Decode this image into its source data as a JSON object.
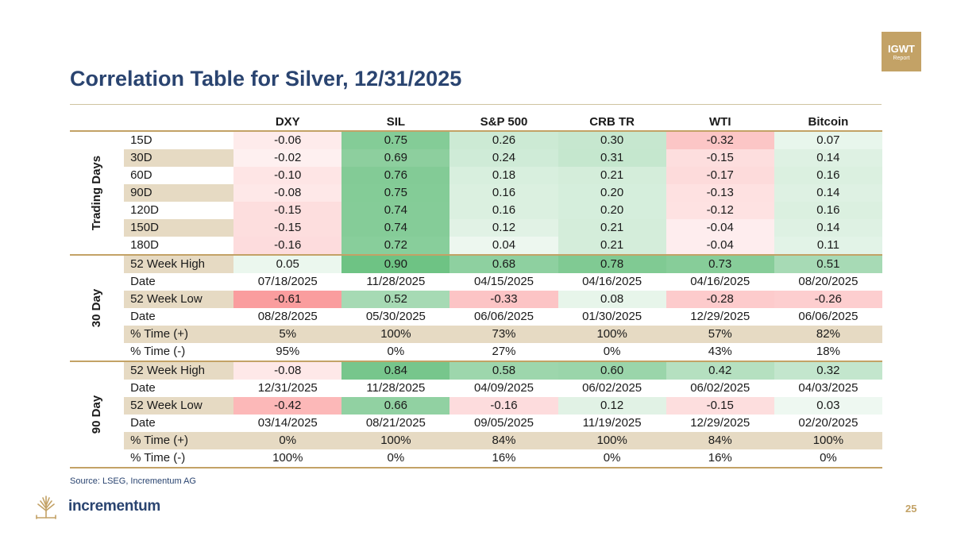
{
  "badge": {
    "line1": "IGWT",
    "line2": "Report"
  },
  "title": "Correlation Table for Silver, 12/31/2025",
  "columns": [
    "DXY",
    "SIL",
    "S&P 500",
    "CRB TR",
    "WTI",
    "Bitcoin"
  ],
  "sections": [
    {
      "label": "Trading Days",
      "rows": [
        {
          "label": "15D",
          "values": [
            "-0.06",
            "0.75",
            "0.26",
            "0.30",
            "-0.32",
            "0.07"
          ]
        },
        {
          "label": "30D",
          "values": [
            "-0.02",
            "0.69",
            "0.24",
            "0.31",
            "-0.15",
            "0.14"
          ]
        },
        {
          "label": "60D",
          "values": [
            "-0.10",
            "0.76",
            "0.18",
            "0.21",
            "-0.17",
            "0.16"
          ]
        },
        {
          "label": "90D",
          "values": [
            "-0.08",
            "0.75",
            "0.16",
            "0.20",
            "-0.13",
            "0.14"
          ]
        },
        {
          "label": "120D",
          "values": [
            "-0.15",
            "0.74",
            "0.16",
            "0.20",
            "-0.12",
            "0.16"
          ]
        },
        {
          "label": "150D",
          "values": [
            "-0.15",
            "0.74",
            "0.12",
            "0.21",
            "-0.04",
            "0.14"
          ]
        },
        {
          "label": "180D",
          "values": [
            "-0.16",
            "0.72",
            "0.04",
            "0.21",
            "-0.04",
            "0.11"
          ]
        }
      ]
    },
    {
      "label": "30 Day",
      "rows": [
        {
          "label": "52 Week High",
          "values": [
            "0.05",
            "0.90",
            "0.68",
            "0.78",
            "0.73",
            "0.51"
          ]
        },
        {
          "label": "Date",
          "values": [
            "07/18/2025",
            "11/28/2025",
            "04/15/2025",
            "04/16/2025",
            "04/16/2025",
            "08/20/2025"
          ]
        },
        {
          "label": "52 Week Low",
          "values": [
            "-0.61",
            "0.52",
            "-0.33",
            "0.08",
            "-0.28",
            "-0.26"
          ]
        },
        {
          "label": "Date",
          "values": [
            "08/28/2025",
            "05/30/2025",
            "06/06/2025",
            "01/30/2025",
            "12/29/2025",
            "06/06/2025"
          ]
        },
        {
          "label": "% Time (+)",
          "values": [
            "5%",
            "100%",
            "73%",
            "100%",
            "57%",
            "82%"
          ]
        },
        {
          "label": "% Time (-)",
          "values": [
            "95%",
            "0%",
            "27%",
            "0%",
            "43%",
            "18%"
          ]
        }
      ]
    },
    {
      "label": "90 Day",
      "rows": [
        {
          "label": "52 Week High",
          "values": [
            "-0.08",
            "0.84",
            "0.58",
            "0.60",
            "0.42",
            "0.32"
          ]
        },
        {
          "label": "Date",
          "values": [
            "12/31/2025",
            "11/28/2025",
            "04/09/2025",
            "06/02/2025",
            "06/02/2025",
            "04/03/2025"
          ]
        },
        {
          "label": "52 Week Low",
          "values": [
            "-0.42",
            "0.66",
            "-0.16",
            "0.12",
            "-0.15",
            "0.03"
          ]
        },
        {
          "label": "Date",
          "values": [
            "03/14/2025",
            "08/21/2025",
            "09/05/2025",
            "11/19/2025",
            "12/29/2025",
            "02/20/2025"
          ]
        },
        {
          "label": "% Time (+)",
          "values": [
            "0%",
            "100%",
            "84%",
            "100%",
            "84%",
            "100%"
          ]
        },
        {
          "label": "% Time (-)",
          "values": [
            "100%",
            "0%",
            "16%",
            "0%",
            "16%",
            "0%"
          ]
        }
      ]
    }
  ],
  "colors": {
    "title": "#2a4470",
    "gold": "#c3a266",
    "beige": "#e6dac3",
    "positive": "#63be7b",
    "negative": "#f8696b"
  },
  "footer": {
    "source": "Source: LSEG, Incrementum AG",
    "brand": "incrementum",
    "logo_icon": "tree-logo-icon",
    "page": "25"
  }
}
